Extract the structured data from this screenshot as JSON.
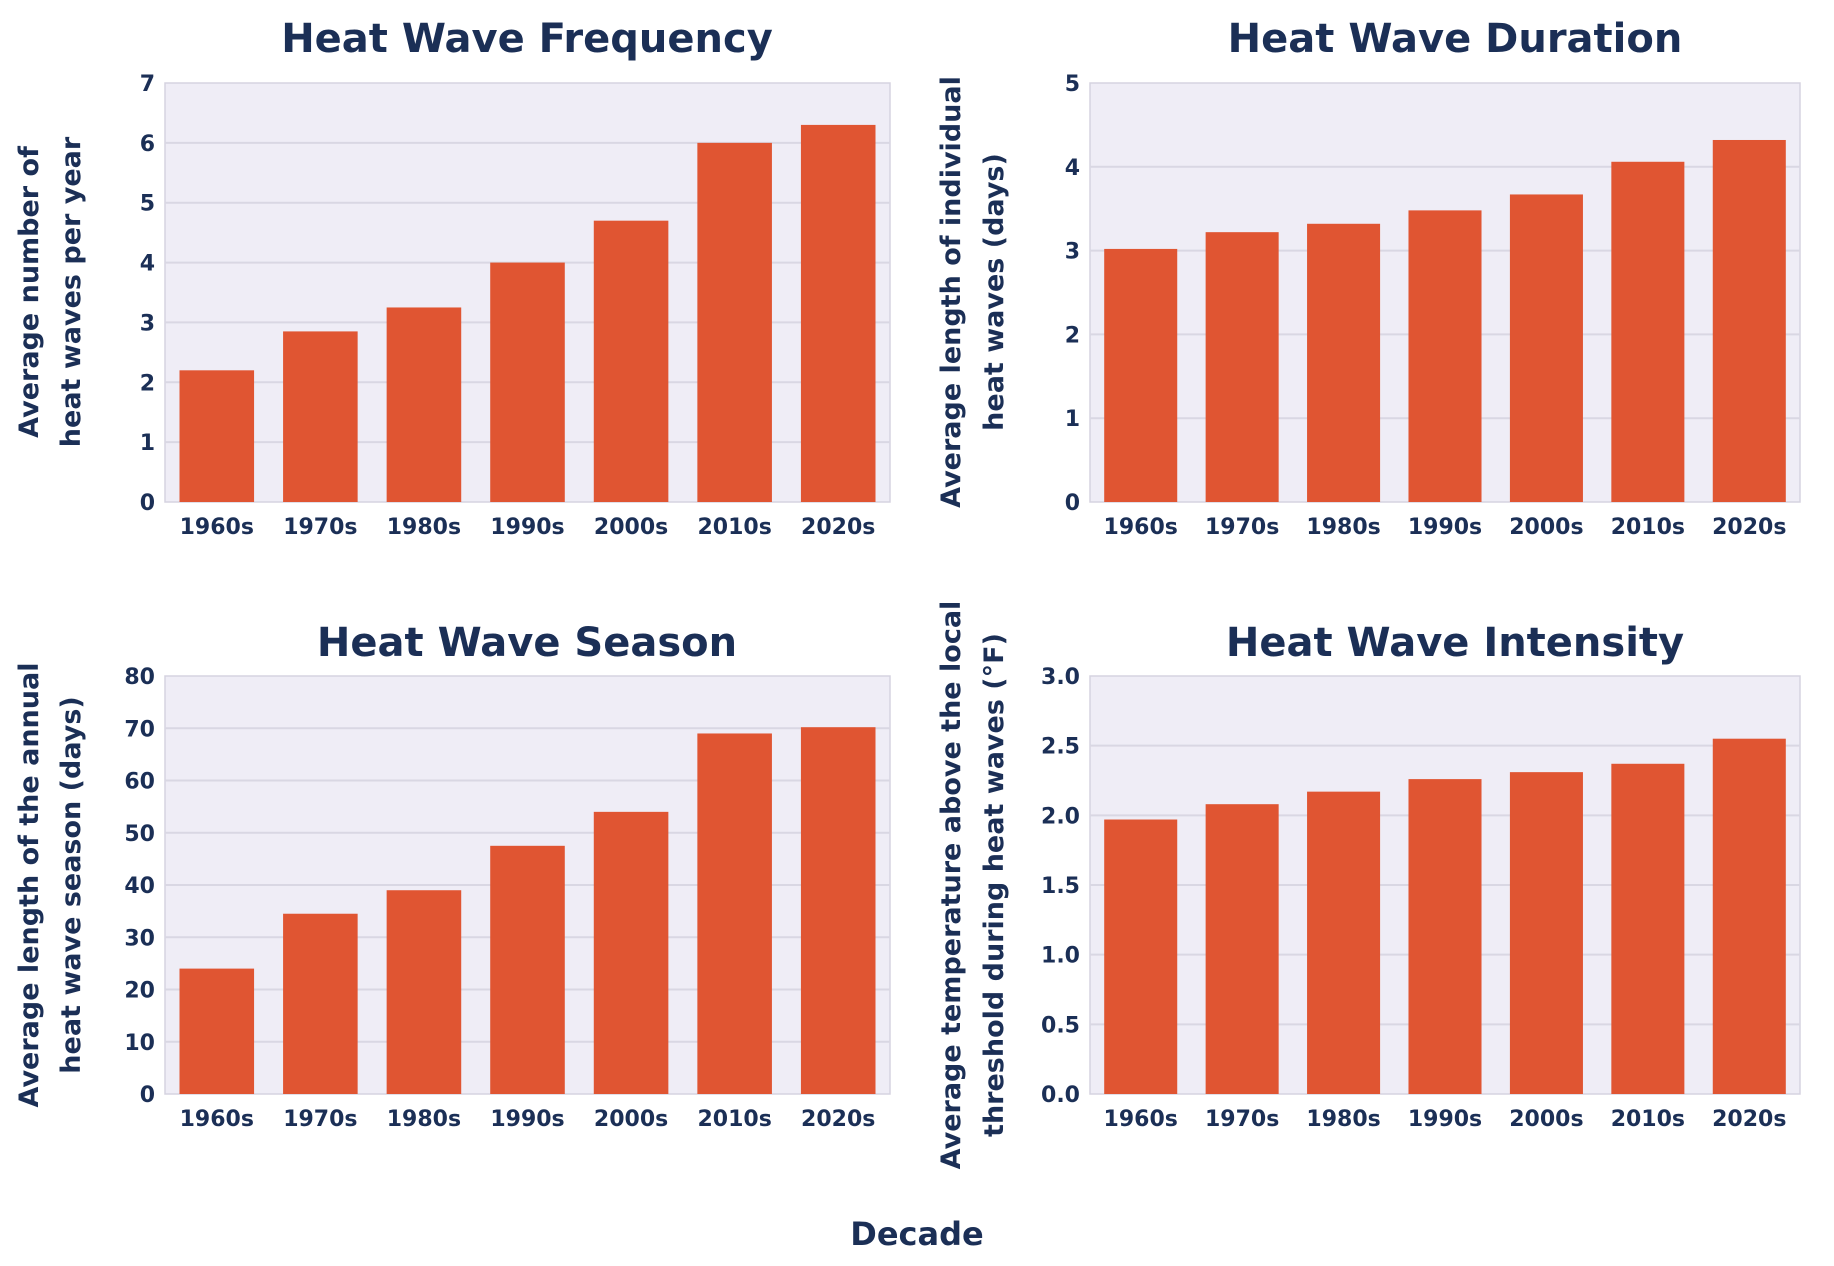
{
  "shared_xlabel": "Decade",
  "colors": {
    "bar": "#e05532",
    "plot_background": "#efedf6",
    "text": "#1b2f56",
    "grid": "#d9d7e3"
  },
  "chart_data": [
    {
      "type": "bar",
      "title": "Heat Wave Frequency",
      "xlabel": "",
      "ylabel": [
        "Average number of",
        "heat waves per year"
      ],
      "categories": [
        "1960s",
        "1970s",
        "1980s",
        "1990s",
        "2000s",
        "2010s",
        "2020s"
      ],
      "values": [
        2.2,
        2.85,
        3.25,
        4.0,
        4.7,
        6.0,
        6.3
      ],
      "ylim": [
        0,
        7
      ],
      "yticks": [
        0,
        1,
        2,
        3,
        4,
        5,
        6,
        7
      ],
      "ytick_labels": [
        "0",
        "1",
        "2",
        "3",
        "4",
        "5",
        "6",
        "7"
      ],
      "grid": true
    },
    {
      "type": "bar",
      "title": "Heat Wave Duration",
      "xlabel": "",
      "ylabel": [
        "Average length of individual",
        "heat waves (days)"
      ],
      "categories": [
        "1960s",
        "1970s",
        "1980s",
        "1990s",
        "2000s",
        "2010s",
        "2020s"
      ],
      "values": [
        3.02,
        3.22,
        3.32,
        3.48,
        3.67,
        4.06,
        4.32
      ],
      "ylim": [
        0,
        5
      ],
      "yticks": [
        0,
        1,
        2,
        3,
        4,
        5
      ],
      "ytick_labels": [
        "0",
        "1",
        "2",
        "3",
        "4",
        "5"
      ],
      "grid": true
    },
    {
      "type": "bar",
      "title": "Heat Wave Season",
      "xlabel": "",
      "ylabel": [
        "Average length of the annual",
        "heat wave season (days)"
      ],
      "categories": [
        "1960s",
        "1970s",
        "1980s",
        "1990s",
        "2000s",
        "2010s",
        "2020s"
      ],
      "values": [
        24,
        34.5,
        39,
        47.5,
        54,
        69,
        70.2
      ],
      "ylim": [
        0,
        80
      ],
      "yticks": [
        0,
        10,
        20,
        30,
        40,
        50,
        60,
        70,
        80
      ],
      "ytick_labels": [
        "0",
        "10",
        "20",
        "30",
        "40",
        "50",
        "60",
        "70",
        "80"
      ],
      "grid": true
    },
    {
      "type": "bar",
      "title": "Heat Wave Intensity",
      "xlabel": "",
      "ylabel": [
        "Average temperature above the local",
        "threshold during heat waves (°F)"
      ],
      "categories": [
        "1960s",
        "1970s",
        "1980s",
        "1990s",
        "2000s",
        "2010s",
        "2020s"
      ],
      "values": [
        1.97,
        2.08,
        2.17,
        2.26,
        2.31,
        2.37,
        2.55
      ],
      "ylim": [
        0,
        3
      ],
      "yticks": [
        0,
        0.5,
        1,
        1.5,
        2,
        2.5,
        3
      ],
      "ytick_labels": [
        "0.0",
        "0.5",
        "1.0",
        "1.5",
        "2.0",
        "2.5",
        "3.0"
      ],
      "grid": true
    }
  ]
}
